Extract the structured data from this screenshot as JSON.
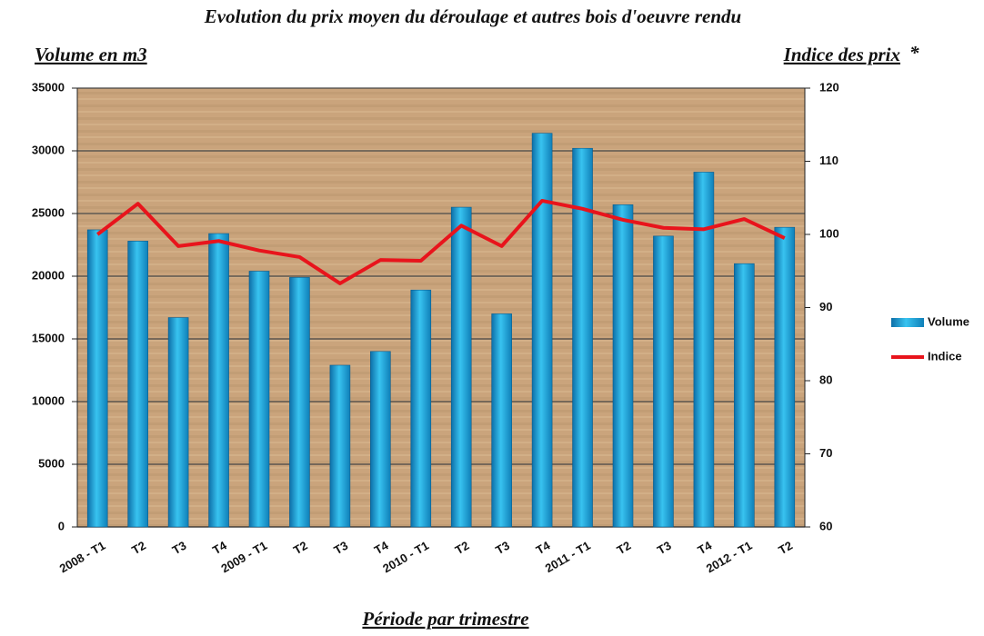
{
  "chart_data": {
    "type": "bar",
    "title": "Evolution du prix moyen du déroulage et autres bois d'oeuvre rendu",
    "ylabel": "Volume en m3",
    "y2label": "Indice des prix",
    "y2label_note": "*",
    "xlabel": "Période par trimestre",
    "categories": [
      "2008 - T1",
      "T2",
      "T3",
      "T4",
      "2009 - T1",
      "T2",
      "T3",
      "T4",
      "2010 - T1",
      "T2",
      "T3",
      "T4",
      "2011 - T1",
      "T2",
      "T3",
      "T4",
      "2012 - T1",
      "T2"
    ],
    "series": [
      {
        "name": "Volume",
        "type": "bar",
        "color": "#1ba3dc",
        "axis": "y",
        "values": [
          23700,
          22800,
          16700,
          23400,
          20400,
          19900,
          12900,
          14000,
          18900,
          25500,
          17000,
          31400,
          30200,
          25700,
          23200,
          28300,
          21000,
          23900
        ]
      },
      {
        "name": "Indice",
        "type": "line",
        "color": "#e8141c",
        "axis": "y2",
        "values": [
          100,
          104.2,
          98.4,
          99.1,
          97.8,
          96.9,
          93.3,
          96.5,
          96.4,
          101.2,
          98.4,
          104.6,
          103.5,
          102,
          100.9,
          100.7,
          102.1,
          99.5
        ]
      }
    ],
    "ylim": [
      0,
      35000
    ],
    "yticks": [
      0,
      5000,
      10000,
      15000,
      20000,
      25000,
      30000,
      35000
    ],
    "y2lim": [
      60,
      120
    ],
    "y2ticks": [
      60,
      70,
      80,
      90,
      100,
      110,
      120
    ],
    "grid": true,
    "legend": "right"
  }
}
